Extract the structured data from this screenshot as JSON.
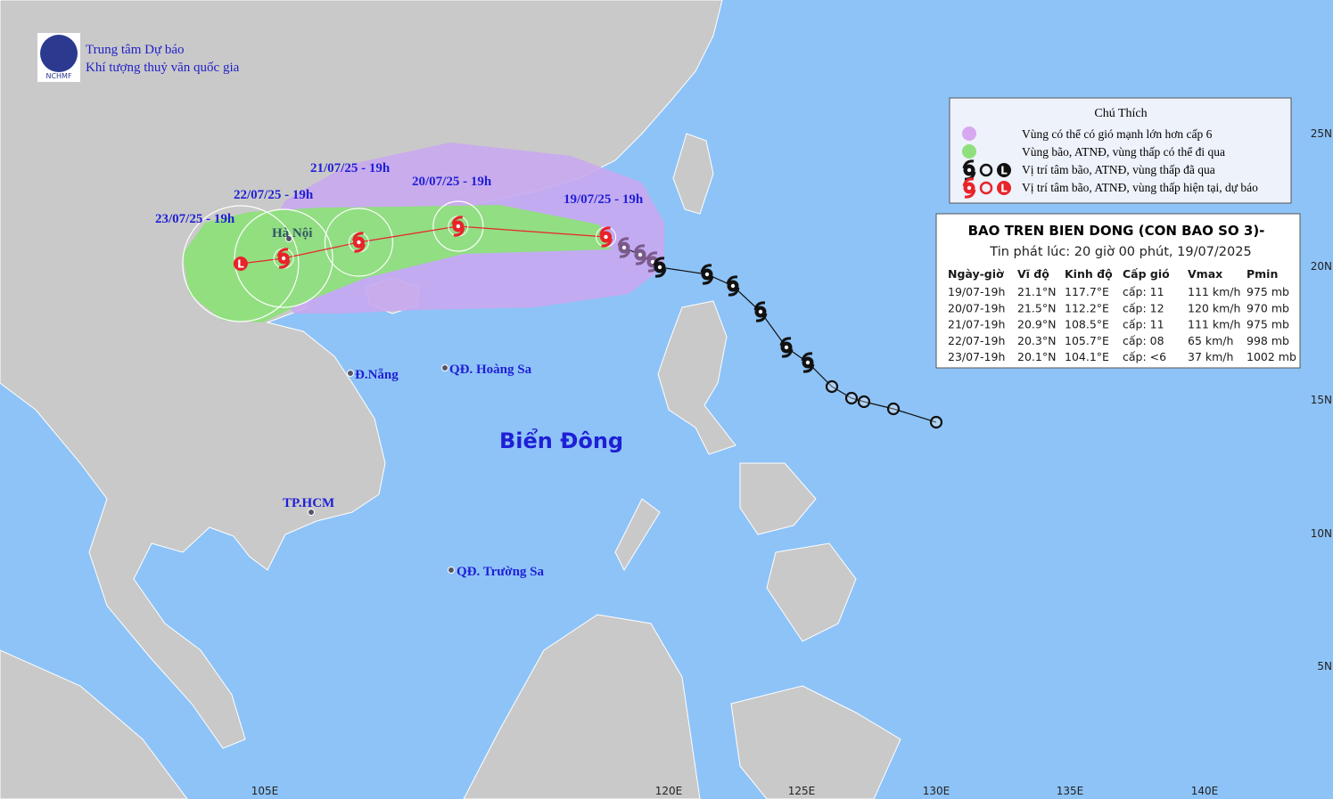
{
  "header": {
    "org_line1": "Trung tâm Dự báo",
    "org_line2": "Khí tượng thuỷ văn quốc gia",
    "logo_text": "NCHMF"
  },
  "legend": {
    "title": "Chú Thích",
    "items": [
      "Vùng có thể có gió mạnh lớn hơn cấp 6",
      "Vùng bão, ATNĐ, vùng thấp có thể đi qua",
      "Vị trí tâm bão, ATNĐ, vùng thấp đã qua",
      "Vị trí tâm bão, ATNĐ, vùng thấp hiện tại, dự báo"
    ],
    "low_symbol": "L"
  },
  "bulletin": {
    "title": "BAO TREN BIEN DONG (CON BAO SO 3)-",
    "issued": "Tin phát lúc: 20 giờ 00 phút, 19/07/2025",
    "columns": [
      "Ngày-giờ",
      "Vĩ độ",
      "Kinh độ",
      "Cấp gió",
      "Vmax",
      "Pmin"
    ],
    "rows": [
      [
        "19/07-19h",
        "21.1°N",
        "117.7°E",
        "cấp: 11",
        "111 km/h",
        "975 mb"
      ],
      [
        "20/07-19h",
        "21.5°N",
        "112.2°E",
        "cấp: 12",
        "120 km/h",
        "970 mb"
      ],
      [
        "21/07-19h",
        "20.9°N",
        "108.5°E",
        "cấp: 11",
        "111 km/h",
        "975 mb"
      ],
      [
        "22/07-19h",
        "20.3°N",
        "105.7°E",
        "cấp: 08",
        "65 km/h",
        "998 mb"
      ],
      [
        "23/07-19h",
        "20.1°N",
        "104.1°E",
        "cấp: <6",
        "37 km/h",
        "1002 mb"
      ]
    ]
  },
  "track_labels": [
    "19/07/25 - 19h",
    "20/07/25 - 19h",
    "21/07/25 - 19h",
    "22/07/25 - 19h",
    "23/07/25 - 19h"
  ],
  "places": [
    "Hà Nội",
    "Đ.Nẵng",
    "QĐ. Hoàng Sa",
    "TP.HCM",
    "QĐ. Trường Sa"
  ],
  "sea_label": "Biển Đông",
  "lon_labels": [
    "105E",
    "120E",
    "125E",
    "130E",
    "135E",
    "140E"
  ],
  "lat_labels": [
    "25N",
    "20N",
    "15N",
    "10N",
    "5N"
  ]
}
